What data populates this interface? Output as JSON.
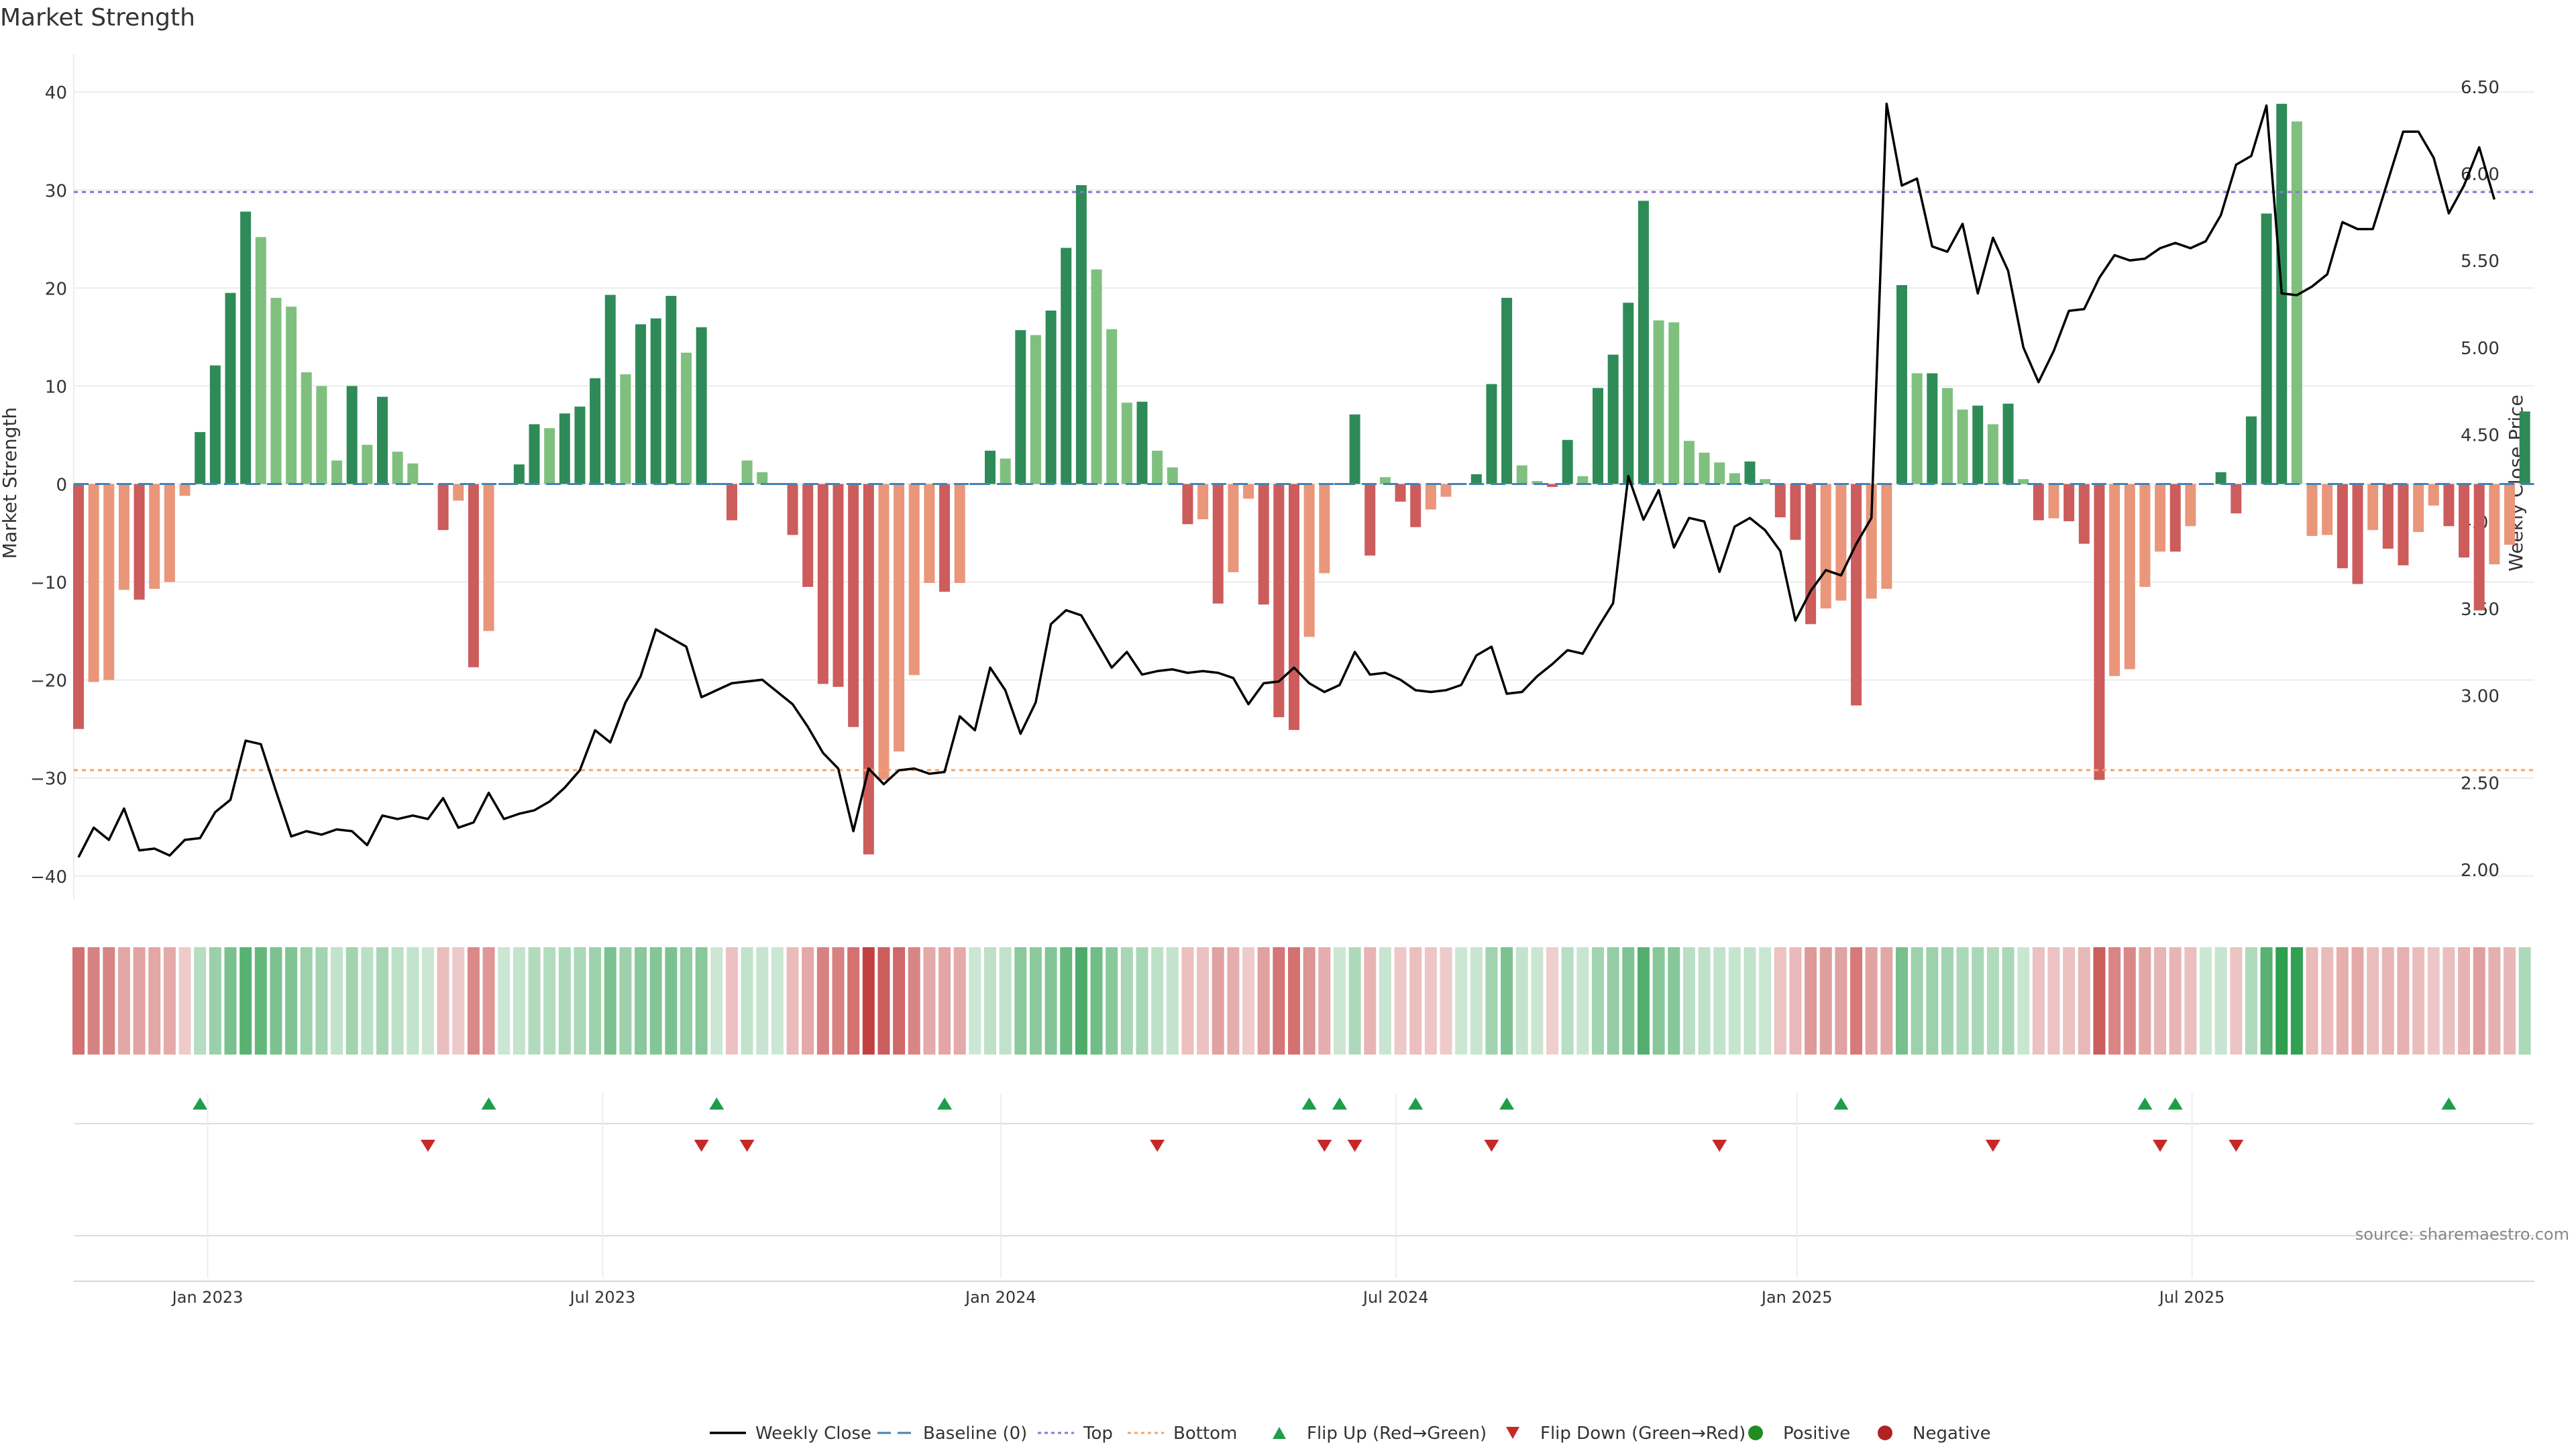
{
  "chart_data": {
    "type": "bar",
    "title": "Market Strength",
    "ylabel": "Market Strength",
    "y2label": "Weekly Close Price",
    "ylim": [
      -42,
      42
    ],
    "y2lim": [
      1.85,
      6.58
    ],
    "yticks": [
      "40",
      "30",
      "20",
      "10",
      "0",
      "−10",
      "−20",
      "−30",
      "−40"
    ],
    "ytick_values": [
      40,
      30,
      20,
      10,
      0,
      -10,
      -20,
      -30,
      -40
    ],
    "y2ticks": [
      "6.50",
      "6.00",
      "5.50",
      "5.00",
      "4.50",
      "4.00",
      "3.50",
      "3.00",
      "2.50",
      "2.00"
    ],
    "y2tick_values": [
      6.5,
      6.0,
      5.5,
      5.0,
      4.5,
      4.0,
      3.5,
      3.0,
      2.5,
      2.0
    ],
    "xticks": [
      "Jan 2023",
      "Jul 2023",
      "Jan 2024",
      "Jul 2024",
      "Jan 2025",
      "Jul 2025"
    ],
    "xtick_weeks": [
      8.5,
      34.5,
      60.7,
      86.7,
      113.1,
      139.1
    ],
    "top_line": 29.8,
    "bottom_line": -29.2,
    "source": "source: sharemaestro.com",
    "legend": [
      "Weekly Close",
      "Baseline (0)",
      "Top",
      "Bottom",
      "Flip Up (Red→Green)",
      "Flip Down (Green→Red)",
      "Positive",
      "Negative"
    ],
    "strength": [
      -25,
      -20.2,
      -20,
      -10.8,
      -11.8,
      -10.7,
      -10,
      -1.2,
      5.3,
      12.1,
      19.5,
      27.8,
      25.2,
      19,
      18.1,
      11.4,
      10,
      2.4,
      10,
      4,
      8.9,
      3.3,
      2.1,
      0,
      -4.7,
      -1.7,
      -18.7,
      -15,
      0,
      2,
      6.1,
      5.7,
      7.2,
      7.9,
      10.8,
      19.3,
      11.2,
      16.3,
      16.9,
      19.2,
      13.4,
      16,
      0,
      -3.7,
      2.4,
      1.2,
      0,
      -5.2,
      -10.5,
      -20.4,
      -20.7,
      -24.8,
      -37.8,
      -30.2,
      -27.3,
      -19.5,
      -10.1,
      -11,
      -10.1,
      0,
      3.4,
      2.6,
      15.7,
      15.2,
      17.7,
      24.1,
      30.5,
      21.9,
      15.8,
      8.3,
      8.4,
      3.4,
      1.7,
      -4.1,
      -3.6,
      -12.2,
      -9,
      -1.5,
      -12.3,
      -23.8,
      -25.1,
      -15.6,
      -9.1,
      0,
      7.1,
      -7.3,
      0.7,
      -1.8,
      -4.4,
      -2.6,
      -1.3,
      0,
      1,
      10.2,
      19,
      1.9,
      0.3,
      -0.3,
      4.5,
      0.8,
      9.8,
      13.2,
      18.5,
      28.9,
      16.7,
      16.5,
      4.4,
      3.2,
      2.2,
      1.1,
      2.3,
      0.5,
      -3.4,
      -5.7,
      -14.3,
      -12.7,
      -11.9,
      -22.6,
      -11.7,
      -10.7,
      20.3,
      11.3,
      11.3,
      9.8,
      7.6,
      8,
      6.1,
      8.2,
      0.5,
      -3.7,
      -3.5,
      -3.8,
      -6.1,
      -30.2,
      -19.6,
      -18.9,
      -10.5,
      -6.9,
      -6.9,
      -4.3,
      0,
      1.2,
      -3,
      6.9,
      27.6,
      38.8,
      37,
      -5.3,
      -5.2,
      -8.6,
      -10.2,
      -4.7,
      -6.6,
      -8.3,
      -4.9,
      -2.2,
      -4.3,
      -7.5,
      -12.9,
      -8.2,
      -6.2,
      7.4
    ],
    "close": [
      2.07,
      2.24,
      2.17,
      2.35,
      2.11,
      2.12,
      2.08,
      2.17,
      2.18,
      2.33,
      2.4,
      2.74,
      2.72,
      2.45,
      2.19,
      2.22,
      2.2,
      2.23,
      2.22,
      2.14,
      2.31,
      2.29,
      2.31,
      2.29,
      2.41,
      2.24,
      2.27,
      2.44,
      2.29,
      2.32,
      2.34,
      2.39,
      2.47,
      2.57,
      2.8,
      2.73,
      2.96,
      3.11,
      3.38,
      3.33,
      3.28,
      2.99,
      3.03,
      3.07,
      3.08,
      3.09,
      3.02,
      2.95,
      2.82,
      2.67,
      2.58,
      2.22,
      2.58,
      2.49,
      2.57,
      2.58,
      2.55,
      2.56,
      2.88,
      2.8,
      3.16,
      3.03,
      2.78,
      2.96,
      3.41,
      3.49,
      3.46,
      3.31,
      3.16,
      3.25,
      3.12,
      3.14,
      3.15,
      3.13,
      3.14,
      3.13,
      3.1,
      2.95,
      3.07,
      3.08,
      3.16,
      3.07,
      3.02,
      3.06,
      3.25,
      3.12,
      3.13,
      3.09,
      3.03,
      3.02,
      3.03,
      3.06,
      3.23,
      3.28,
      3.01,
      3.02,
      3.11,
      3.18,
      3.26,
      3.24,
      3.39,
      3.53,
      4.26,
      4.01,
      4.18,
      3.85,
      4.02,
      4.0,
      3.71,
      3.97,
      4.02,
      3.95,
      3.83,
      3.43,
      3.6,
      3.72,
      3.69,
      3.87,
      4.02,
      6.4,
      5.93,
      5.97,
      5.58,
      5.55,
      5.71,
      5.31,
      5.63,
      5.44,
      5.0,
      4.8,
      4.98,
      5.21,
      5.22,
      5.4,
      5.53,
      5.5,
      5.51,
      5.57,
      5.6,
      5.57,
      5.61,
      5.76,
      6.05,
      6.1,
      6.39,
      5.31,
      5.3,
      5.35,
      5.42,
      5.72,
      5.68,
      5.68,
      5.96,
      6.24,
      6.24,
      6.09,
      5.77,
      5.93,
      6.15,
      5.85
    ],
    "flip_up_weeks": [
      8,
      27,
      42,
      57,
      81,
      83,
      88,
      94,
      116,
      136,
      138,
      156
    ],
    "flip_down_weeks": [
      23,
      41,
      44,
      71,
      82,
      84,
      93,
      108,
      126,
      137,
      142
    ]
  },
  "colors": {
    "pos_strong": "#2e8b57",
    "pos_light": "#7fc07f",
    "neg_strong": "#cd5c5c",
    "neg_light": "#e9967a",
    "close_line": "#000000",
    "baseline": "#4682b4",
    "top_line": "#9370db",
    "bottom_line": "#f4a460",
    "flip_up": "#1e9e4a",
    "flip_down": "#c62828",
    "positive": "#228b22",
    "negative": "#b22222"
  }
}
